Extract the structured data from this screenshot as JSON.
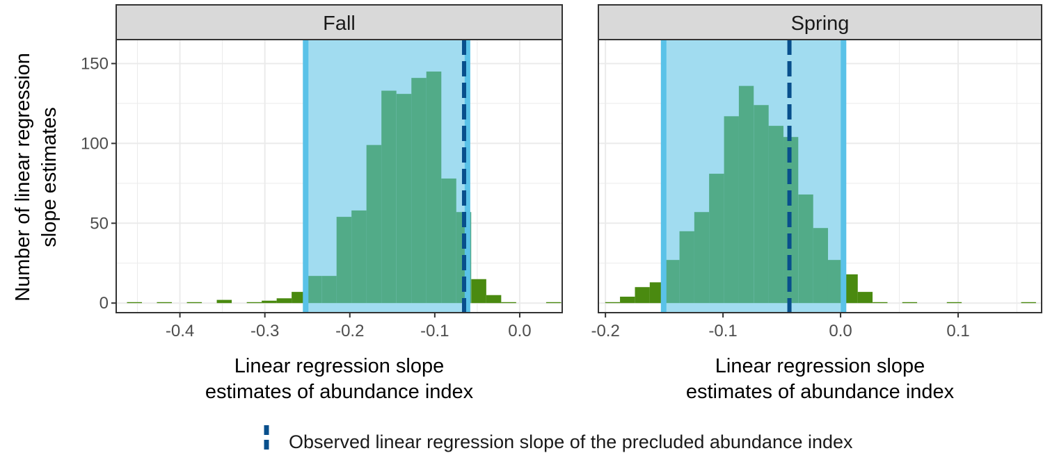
{
  "chart_data": {
    "type": "bar",
    "ylabel": "Number of linear regression slope estimates",
    "ylabel_lines": [
      "Number of linear regression",
      "slope estimates"
    ],
    "ylim": [
      -6,
      165
    ],
    "yticks": [
      0,
      50,
      100,
      150
    ],
    "xlabel_lines": [
      "Linear regression slope",
      "estimates of abundance index"
    ],
    "legend": {
      "position": "bottom",
      "label": "Observed linear regression slope of the precluded abundance index"
    },
    "colors": {
      "bars_in_interval": "#52ab88",
      "bars_outside": "#4a8a10",
      "interval_band": "#a1dcf0",
      "interval_edge": "#5ac2e8",
      "observed_line": "#084f8c",
      "strip_bg": "#d9d9d9",
      "grid": "#ebebeb"
    },
    "panels": [
      {
        "strip": "Fall",
        "xlim": [
          -0.475,
          0.05
        ],
        "xticks": [
          -0.4,
          -0.3,
          -0.2,
          -0.1,
          0.0
        ],
        "xtick_labels": [
          "-0.4",
          "-0.3",
          "-0.2",
          "-0.1",
          "0.0"
        ],
        "bin_width": 0.01762,
        "interval": [
          -0.252,
          -0.0615
        ],
        "observed": -0.0655,
        "bins": [
          {
            "x": -0.4535,
            "count": 0.6
          },
          {
            "x": -0.4359,
            "count": 0
          },
          {
            "x": -0.4183,
            "count": 0.6
          },
          {
            "x": -0.4006,
            "count": 0
          },
          {
            "x": -0.383,
            "count": 0.6
          },
          {
            "x": -0.3654,
            "count": 0
          },
          {
            "x": -0.3478,
            "count": 2
          },
          {
            "x": -0.3302,
            "count": 0
          },
          {
            "x": -0.3125,
            "count": 0.6
          },
          {
            "x": -0.2949,
            "count": 1.5
          },
          {
            "x": -0.2773,
            "count": 3
          },
          {
            "x": -0.2597,
            "count": 7
          },
          {
            "x": -0.2421,
            "count": 17
          },
          {
            "x": -0.2244,
            "count": 17
          },
          {
            "x": -0.2068,
            "count": 54
          },
          {
            "x": -0.1892,
            "count": 58
          },
          {
            "x": -0.1716,
            "count": 99
          },
          {
            "x": -0.154,
            "count": 133
          },
          {
            "x": -0.1363,
            "count": 131
          },
          {
            "x": -0.1187,
            "count": 141
          },
          {
            "x": -0.1011,
            "count": 145
          },
          {
            "x": -0.0835,
            "count": 78
          },
          {
            "x": -0.0659,
            "count": 57
          },
          {
            "x": -0.0482,
            "count": 15
          },
          {
            "x": -0.0306,
            "count": 5
          },
          {
            "x": -0.013,
            "count": 0.6
          },
          {
            "x": 0.0046,
            "count": 0
          },
          {
            "x": 0.0222,
            "count": 0
          },
          {
            "x": 0.0399,
            "count": 0.6
          }
        ]
      },
      {
        "strip": "Spring",
        "xlim": [
          -0.206,
          0.171
        ],
        "xticks": [
          -0.2,
          -0.1,
          0.0,
          0.1
        ],
        "xtick_labels": [
          "-0.2",
          "-0.1",
          "0.0",
          "0.1"
        ],
        "bin_width": 0.01263,
        "interval": [
          -0.1505,
          0.0025
        ],
        "observed": -0.0435,
        "bins": [
          {
            "x": -0.1939,
            "count": 0.6
          },
          {
            "x": -0.1813,
            "count": 4
          },
          {
            "x": -0.1686,
            "count": 10
          },
          {
            "x": -0.156,
            "count": 13
          },
          {
            "x": -0.1434,
            "count": 27
          },
          {
            "x": -0.1307,
            "count": 45
          },
          {
            "x": -0.1181,
            "count": 57
          },
          {
            "x": -0.1055,
            "count": 81
          },
          {
            "x": -0.0928,
            "count": 117
          },
          {
            "x": -0.0802,
            "count": 136
          },
          {
            "x": -0.0675,
            "count": 124
          },
          {
            "x": -0.0549,
            "count": 111
          },
          {
            "x": -0.0423,
            "count": 104
          },
          {
            "x": -0.0296,
            "count": 68
          },
          {
            "x": -0.017,
            "count": 47
          },
          {
            "x": -0.0044,
            "count": 27
          },
          {
            "x": 0.0083,
            "count": 18
          },
          {
            "x": 0.0209,
            "count": 7
          },
          {
            "x": 0.0336,
            "count": 0.6
          },
          {
            "x": 0.0462,
            "count": 0
          },
          {
            "x": 0.0588,
            "count": 0.6
          },
          {
            "x": 0.0715,
            "count": 0
          },
          {
            "x": 0.0841,
            "count": 0
          },
          {
            "x": 0.0967,
            "count": 0.6
          },
          {
            "x": 0.1094,
            "count": 0
          },
          {
            "x": 0.122,
            "count": 0
          },
          {
            "x": 0.1347,
            "count": 0
          },
          {
            "x": 0.1473,
            "count": 0
          },
          {
            "x": 0.1599,
            "count": 0.6
          }
        ]
      }
    ]
  }
}
